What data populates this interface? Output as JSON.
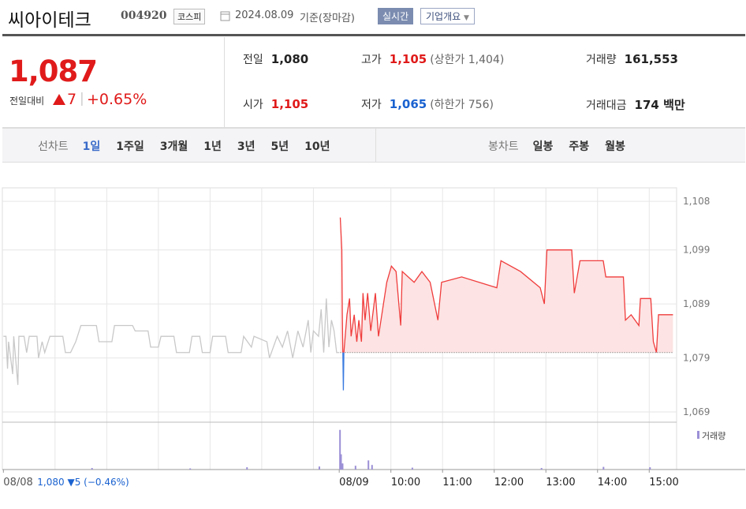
{
  "header": {
    "name": "씨아이테크",
    "code": "004920",
    "market": "코스피",
    "date": "2024.08.09",
    "basis": "기준(장마감)",
    "realtime": "실시간",
    "overview": "기업개요"
  },
  "summary": {
    "price": "1,087",
    "change_label": "전일대비",
    "change": "7",
    "rate": "+0.65%",
    "items": [
      [
        {
          "label": "전일",
          "value": "1,080",
          "color": "#222"
        },
        {
          "label": "고가",
          "value": "1,105",
          "note": "(상한가 1,404)",
          "color": "#e01a1a"
        },
        {
          "label": "거래량",
          "value": "161,553",
          "color": "#222"
        }
      ],
      [
        {
          "label": "시가",
          "value": "1,105",
          "color": "#e01a1a"
        },
        {
          "label": "저가",
          "value": "1,065",
          "note": "(하한가 756)",
          "color": "#1a62d0"
        },
        {
          "label": "거래대금",
          "value": "174 백만",
          "color": "#222"
        }
      ]
    ]
  },
  "tabs": {
    "line_label": "선차트",
    "line": [
      "1일",
      "1주일",
      "3개월",
      "1년",
      "3년",
      "5년",
      "10년"
    ],
    "candle_label": "봉차트",
    "candle": [
      "일봉",
      "주봉",
      "월봉"
    ]
  },
  "chart_data": {
    "type": "line",
    "base": 1080,
    "prev_note": "1,080 ▼5 (−0.46%)",
    "xlim": [
      2.48,
      15.53
    ],
    "ylim": [
      1067.1,
      1110.5
    ],
    "yticks": [
      {
        "value": 1069,
        "label": "1,069"
      },
      {
        "value": 1079,
        "label": "1,079"
      },
      {
        "value": 1089,
        "label": "1,089"
      },
      {
        "value": 1099,
        "label": "1,099"
      },
      {
        "value": 1108,
        "label": "1,108"
      }
    ],
    "xticks": [
      {
        "value": 2.5,
        "label": "08/08"
      },
      {
        "value": 9,
        "label": "08/09"
      },
      {
        "value": 10,
        "label": "10:00"
      },
      {
        "value": 11,
        "label": "11:00"
      },
      {
        "value": 12,
        "label": "12:00"
      },
      {
        "value": 13,
        "label": "13:00"
      },
      {
        "value": 14,
        "label": "14:00"
      },
      {
        "value": 15,
        "label": "15:00"
      }
    ],
    "x_gridlines": [
      3.5,
      4.5,
      5.5,
      6.5,
      7.5,
      8.5,
      10,
      11,
      12,
      13,
      14,
      15
    ],
    "series": [
      {
        "color": "#c8c8c8",
        "x": [
          2.5,
          2.55,
          2.58,
          2.6,
          2.68,
          2.7,
          2.78,
          2.8,
          2.9,
          2.95,
          3.0,
          3.15,
          3.18,
          3.25,
          3.3,
          3.4,
          3.6,
          3.65,
          3.7,
          3.8,
          3.9,
          4.0,
          4.3,
          4.35,
          4.6,
          4.65,
          5.0,
          5.05,
          5.3,
          5.35,
          5.5,
          5.55,
          5.8,
          5.85,
          6.1,
          6.15,
          6.3,
          6.35,
          6.5,
          6.55,
          6.8,
          6.85,
          7.1,
          7.15,
          7.3,
          7.35,
          7.6,
          7.65,
          7.8,
          7.9,
          8.0,
          8.1,
          8.2,
          8.3,
          8.4,
          8.45,
          8.5,
          8.6,
          8.65,
          8.7,
          8.75,
          8.8,
          8.85,
          8.9,
          8.95,
          9.0
        ],
        "values": [
          1083,
          1083,
          1077,
          1082,
          1076,
          1083,
          1074,
          1083,
          1083,
          1080,
          1083,
          1083,
          1079,
          1082,
          1080,
          1083,
          1083,
          1083,
          1080,
          1080,
          1082,
          1085,
          1085,
          1082,
          1082,
          1085,
          1085,
          1084,
          1084,
          1081,
          1081,
          1083,
          1083,
          1080,
          1080,
          1083,
          1083,
          1080,
          1080,
          1083,
          1083,
          1080,
          1080,
          1083,
          1081,
          1083,
          1082,
          1079,
          1083,
          1081,
          1084,
          1079,
          1084,
          1081,
          1086,
          1080,
          1084,
          1083,
          1088,
          1080,
          1090,
          1081,
          1086,
          1084,
          1080,
          1080
        ]
      },
      {
        "color": "#f03c3c",
        "below_color": "#3a7be0",
        "fill": "#fde3e3",
        "x": [
          9.02,
          9.05,
          9.06,
          9.08,
          9.09,
          9.15,
          9.2,
          9.23,
          9.29,
          9.34,
          9.38,
          9.43,
          9.46,
          9.5,
          9.55,
          9.61,
          9.7,
          9.76,
          9.92,
          10.01,
          10.1,
          10.19,
          10.22,
          10.45,
          10.6,
          10.76,
          10.91,
          10.98,
          11.37,
          12.05,
          12.13,
          12.51,
          12.89,
          12.97,
          13.02,
          13.5,
          13.55,
          13.66,
          14.11,
          14.16,
          14.5,
          14.54,
          14.65,
          14.8,
          14.83,
          15.03,
          15.08,
          15.14,
          15.18,
          15.34,
          15.46
        ],
        "values": [
          1105,
          1099,
          1087,
          1073,
          1080,
          1087,
          1090,
          1083,
          1087,
          1082,
          1086,
          1082,
          1091,
          1086,
          1091,
          1084,
          1091,
          1083,
          1093,
          1096,
          1095,
          1085,
          1095,
          1093,
          1095,
          1093,
          1086,
          1093,
          1094,
          1092,
          1097,
          1095,
          1092,
          1089,
          1099,
          1099,
          1091,
          1097,
          1097,
          1094,
          1094,
          1086,
          1087,
          1085,
          1090,
          1090,
          1082,
          1080,
          1087,
          1087,
          1087
        ]
      }
    ],
    "volume": {
      "name": "거래량",
      "color": "#9b8fd6",
      "vlim": [
        0,
        60000
      ],
      "x": [
        4.2,
        6.1,
        7.2,
        8.6,
        9.0,
        9.02,
        9.05,
        9.3,
        9.55,
        9.62,
        10.4,
        12.9,
        14.1,
        15.0
      ],
      "values": [
        2000,
        1500,
        3000,
        4000,
        52000,
        20000,
        8000,
        5000,
        12000,
        6000,
        2500,
        2000,
        3500,
        3000
      ]
    }
  }
}
